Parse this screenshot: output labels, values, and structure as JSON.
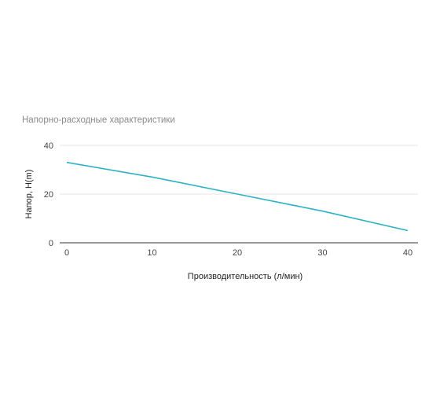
{
  "chart_data": {
    "type": "line",
    "title": "Напорно-расходные характеристики",
    "xlabel": "Производительность (л/мин)",
    "ylabel": "Напор, H(m)",
    "xlim": [
      0,
      40
    ],
    "ylim": [
      0,
      40
    ],
    "xticks": [
      0,
      10,
      20,
      30,
      40
    ],
    "yticks": [
      0,
      20,
      40
    ],
    "grid": true,
    "legend": "none",
    "series": [
      {
        "color": "#2bb3c5",
        "x": [
          0,
          10,
          20,
          30,
          40
        ],
        "y": [
          33,
          27,
          20,
          13,
          5
        ]
      }
    ]
  }
}
